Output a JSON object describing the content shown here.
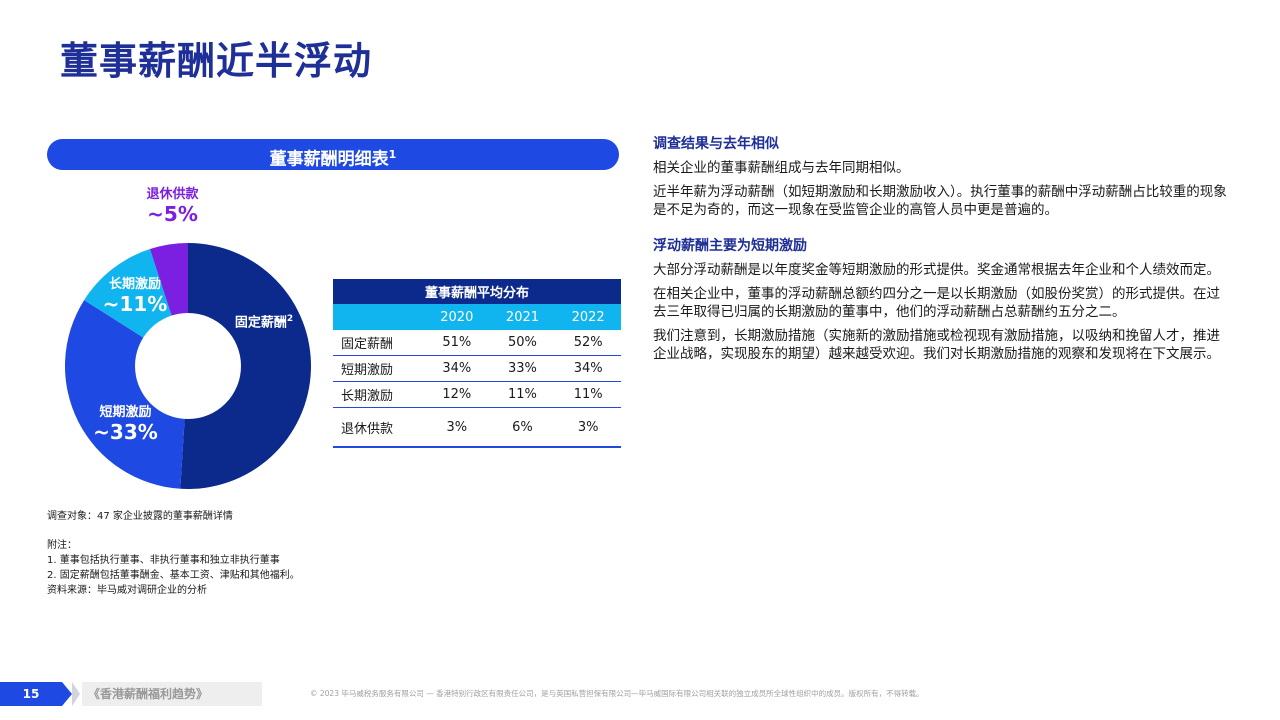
{
  "title": "董事薪酬近半浮动",
  "chart_header": {
    "text": "董事薪酬明细表",
    "sup": "1"
  },
  "chart_data": {
    "type": "pie",
    "categories": [
      "固定薪酬",
      "短期激励",
      "长期激励",
      "退休供款"
    ],
    "values": [
      51,
      33,
      11,
      5
    ],
    "colors": [
      "#0c2a8c",
      "#1e49e2",
      "#10b4ee",
      "#7b1fe0"
    ],
    "labels": {
      "fixed": {
        "text": "固定薪酬",
        "sup": "2"
      },
      "short": {
        "text": "短期激励",
        "value": "~33%"
      },
      "long": {
        "text": "长期激励",
        "value": "~11%"
      },
      "retire": {
        "text": "退休供款",
        "value": "~5%"
      }
    }
  },
  "table": {
    "title": "董事薪酬平均分布",
    "years": [
      "2020",
      "2021",
      "2022"
    ],
    "rows": [
      {
        "label": "固定薪酬",
        "values": [
          "51%",
          "50%",
          "52%"
        ]
      },
      {
        "label": "短期激励",
        "values": [
          "34%",
          "33%",
          "34%"
        ]
      },
      {
        "label": "长期激励",
        "values": [
          "12%",
          "11%",
          "11%"
        ]
      },
      {
        "label": "退休供款",
        "values": [
          "3%",
          "6%",
          "3%"
        ]
      }
    ]
  },
  "notes": {
    "survey": "调查对象：47 家企业披露的董事薪酬详情",
    "heading": "附注：",
    "note1": "1. 董事包括执行董事、非执行董事和独立非执行董事",
    "note2": "2. 固定薪酬包括董事酬金、基本工资、津贴和其他福利。",
    "source": "资料来源：毕马威对调研企业的分析"
  },
  "right": {
    "h1": "调查结果与去年相似",
    "p1": "相关企业的董事薪酬组成与去年同期相似。",
    "p2": "近半年薪为浮动薪酬（如短期激励和长期激励收入）。执行董事的薪酬中浮动薪酬占比较重的现象是不足为奇的，而这一现象在受监管企业的高管人员中更是普遍的。",
    "h2": "浮动薪酬主要为短期激励",
    "p3": "大部分浮动薪酬是以年度奖金等短期激励的形式提供。奖金通常根据去年企业和个人绩效而定。",
    "p4": "在相关企业中，董事的浮动薪酬总额约四分之一是以长期激励（如股份奖赏）的形式提供。在过去三年取得已归属的长期激励的董事中，他们的浮动薪酬占总薪酬约五分之二。",
    "p5": "我们注意到，长期激励措施（实施新的激励措施或检视现有激励措施，以吸纳和挽留人才，推进企业战略，实现股东的期望）越来越受欢迎。我们对长期激励措施的观察和发现将在下文展示。"
  },
  "footer": {
    "page": "15",
    "publication": "《香港薪酬福利趋势》",
    "copyright": "© 2023 毕马威税务服务有限公司 — 香港特别行政区有限责任公司，是与英国私营担保有限公司—毕马威国际有限公司相关联的独立成员所全球性组织中的成员。版权所有，不得转载。"
  }
}
